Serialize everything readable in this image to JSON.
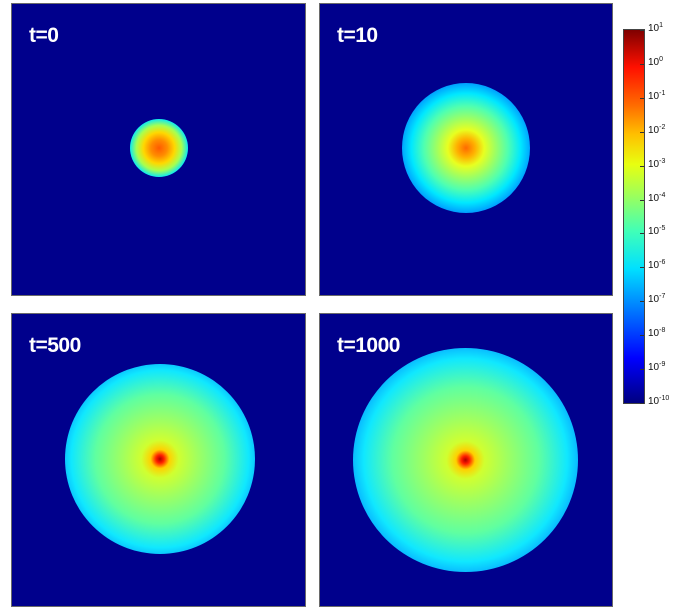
{
  "panels": [
    {
      "label": "t=0"
    },
    {
      "label": "t=10"
    },
    {
      "label": "t=500"
    },
    {
      "label": "t=1000"
    }
  ],
  "colorbar": {
    "base": "10",
    "exponents": [
      "1",
      "0",
      "-1",
      "-2",
      "-3",
      "-4",
      "-5",
      "-6",
      "-7",
      "-8",
      "-9",
      "-10"
    ]
  },
  "colors": {
    "background": "#00008c",
    "colormap": "jet"
  }
}
